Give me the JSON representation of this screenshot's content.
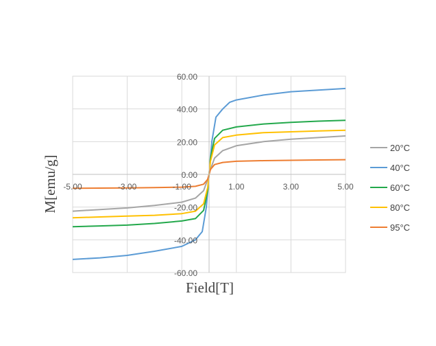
{
  "chart_data": {
    "type": "line",
    "xlabel": "Field[T]",
    "ylabel": "M[emu/g]",
    "xlim": [
      -5,
      5
    ],
    "ylim": [
      -60,
      60
    ],
    "x_ticks": [
      -5,
      -3,
      -1,
      1,
      3,
      5
    ],
    "x_tick_labels": [
      "-5.00",
      "-3.00",
      "-1.00",
      "1.00",
      "3.00",
      "5.00"
    ],
    "y_ticks": [
      60,
      40,
      20,
      0,
      -20,
      -40,
      -60
    ],
    "y_tick_labels": [
      "60.00",
      "40.00",
      "20.00",
      "0.00",
      "-20.00",
      "-40.00",
      "-60.00"
    ],
    "grid": true,
    "legend_position": "right",
    "series": [
      {
        "name": "20°C",
        "color": "#a5a5a5",
        "points": [
          [
            -5,
            -22.5
          ],
          [
            -4,
            -21.5
          ],
          [
            -3,
            -20.5
          ],
          [
            -2,
            -19
          ],
          [
            -1,
            -17
          ],
          [
            -0.5,
            -14.5
          ],
          [
            -0.2,
            -10
          ],
          [
            -0.05,
            -3
          ],
          [
            0,
            0
          ],
          [
            0.05,
            3
          ],
          [
            0.2,
            10
          ],
          [
            0.5,
            14.5
          ],
          [
            1,
            17.5
          ],
          [
            2,
            20
          ],
          [
            3,
            21.5
          ],
          [
            4,
            22.5
          ],
          [
            5,
            23.5
          ]
        ]
      },
      {
        "name": "40°C",
        "color": "#5b9bd5",
        "points": [
          [
            -5,
            -52
          ],
          [
            -4,
            -51
          ],
          [
            -3,
            -49.5
          ],
          [
            -2,
            -47
          ],
          [
            -1,
            -44
          ],
          [
            -0.5,
            -40
          ],
          [
            -0.25,
            -35
          ],
          [
            -0.1,
            -20
          ],
          [
            0,
            0
          ],
          [
            0.1,
            20
          ],
          [
            0.25,
            35
          ],
          [
            0.5,
            40
          ],
          [
            0.75,
            44
          ],
          [
            1,
            45.5
          ],
          [
            2,
            48.5
          ],
          [
            3,
            50.5
          ],
          [
            4,
            51.5
          ],
          [
            5,
            52.5
          ]
        ]
      },
      {
        "name": "60°C",
        "color": "#22a84b",
        "points": [
          [
            -5,
            -32
          ],
          [
            -4,
            -31.5
          ],
          [
            -3,
            -31
          ],
          [
            -2,
            -30
          ],
          [
            -1,
            -28.5
          ],
          [
            -0.5,
            -27
          ],
          [
            -0.2,
            -22
          ],
          [
            -0.05,
            -10
          ],
          [
            0,
            0
          ],
          [
            0.05,
            10
          ],
          [
            0.2,
            22
          ],
          [
            0.5,
            27
          ],
          [
            1,
            29
          ],
          [
            2,
            30.8
          ],
          [
            3,
            31.8
          ],
          [
            4,
            32.5
          ],
          [
            5,
            33
          ]
        ]
      },
      {
        "name": "80°C",
        "color": "#ffc000",
        "points": [
          [
            -5,
            -26.5
          ],
          [
            -4,
            -26
          ],
          [
            -3,
            -25.5
          ],
          [
            -2,
            -25
          ],
          [
            -1,
            -24
          ],
          [
            -0.5,
            -22.5
          ],
          [
            -0.2,
            -18
          ],
          [
            -0.05,
            -8
          ],
          [
            0,
            0
          ],
          [
            0.05,
            8
          ],
          [
            0.2,
            18
          ],
          [
            0.5,
            22.5
          ],
          [
            1,
            24
          ],
          [
            2,
            25.5
          ],
          [
            3,
            26
          ],
          [
            4,
            26.5
          ],
          [
            5,
            27
          ]
        ]
      },
      {
        "name": "95°C",
        "color": "#ed7d31",
        "points": [
          [
            -5,
            -8.5
          ],
          [
            -4,
            -8.4
          ],
          [
            -3,
            -8.3
          ],
          [
            -2,
            -8.1
          ],
          [
            -1,
            -7.8
          ],
          [
            -0.5,
            -7.3
          ],
          [
            -0.2,
            -6
          ],
          [
            -0.05,
            -3
          ],
          [
            0,
            0
          ],
          [
            0.05,
            3
          ],
          [
            0.2,
            6
          ],
          [
            0.5,
            7.3
          ],
          [
            1,
            8
          ],
          [
            2,
            8.4
          ],
          [
            3,
            8.6
          ],
          [
            4,
            8.8
          ],
          [
            5,
            9
          ]
        ]
      }
    ]
  }
}
